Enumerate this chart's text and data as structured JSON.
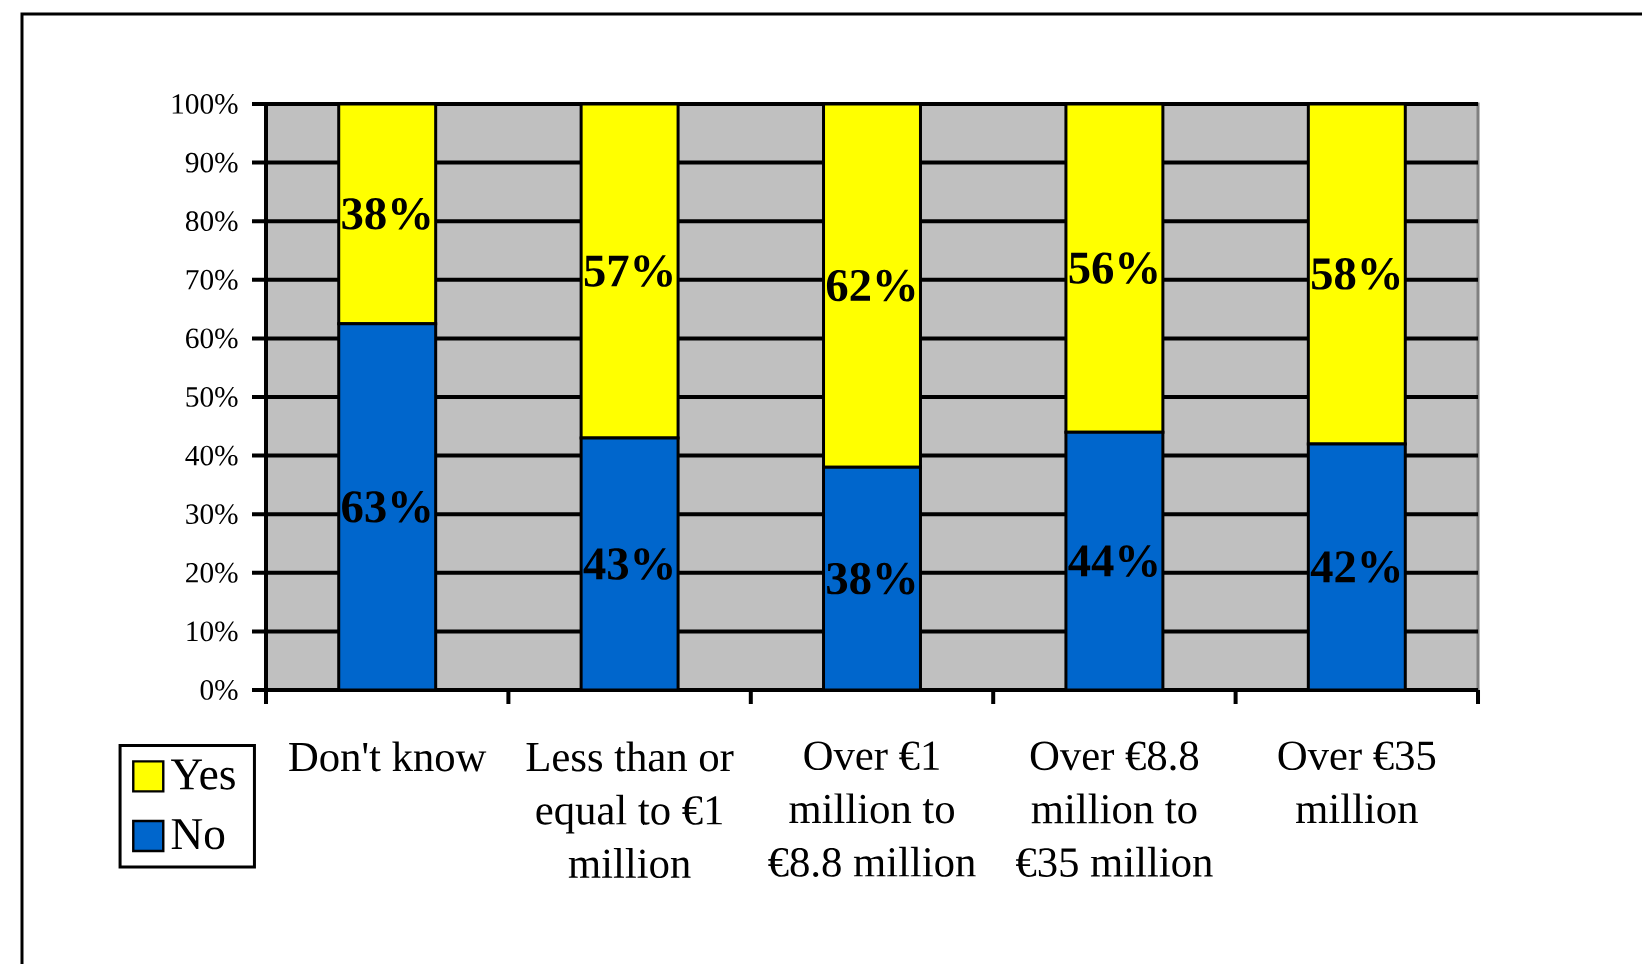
{
  "chart_data": {
    "type": "bar",
    "stacked": true,
    "categories": [
      "Don't know",
      "Less than or equal to €1 million",
      "Over €1 million to €8.8 million",
      "Over €8.8 million to €35 million",
      "Over €35 million"
    ],
    "series": [
      {
        "name": "No",
        "color": "#0066cc",
        "values": [
          62.5,
          43,
          38,
          44,
          42
        ],
        "value_labels": [
          "63%",
          "43%",
          "38%",
          "44%",
          "42%"
        ]
      },
      {
        "name": "Yes",
        "color": "#ffff00",
        "values": [
          37.5,
          57,
          62,
          56,
          58
        ],
        "value_labels": [
          "38%",
          "57%",
          "62%",
          "56%",
          "58%"
        ]
      }
    ],
    "ylim": [
      0,
      100
    ],
    "yticks": [
      {
        "value": 0,
        "label": "0%"
      },
      {
        "value": 10,
        "label": "10%"
      },
      {
        "value": 20,
        "label": "20%"
      },
      {
        "value": 30,
        "label": "30%"
      },
      {
        "value": 40,
        "label": "40%"
      },
      {
        "value": 50,
        "label": "50%"
      },
      {
        "value": 60,
        "label": "60%"
      },
      {
        "value": 70,
        "label": "70%"
      },
      {
        "value": 80,
        "label": "80%"
      },
      {
        "value": 90,
        "label": "90%"
      },
      {
        "value": 100,
        "label": "100%"
      }
    ],
    "grid": "y",
    "legend": "bottom left"
  }
}
